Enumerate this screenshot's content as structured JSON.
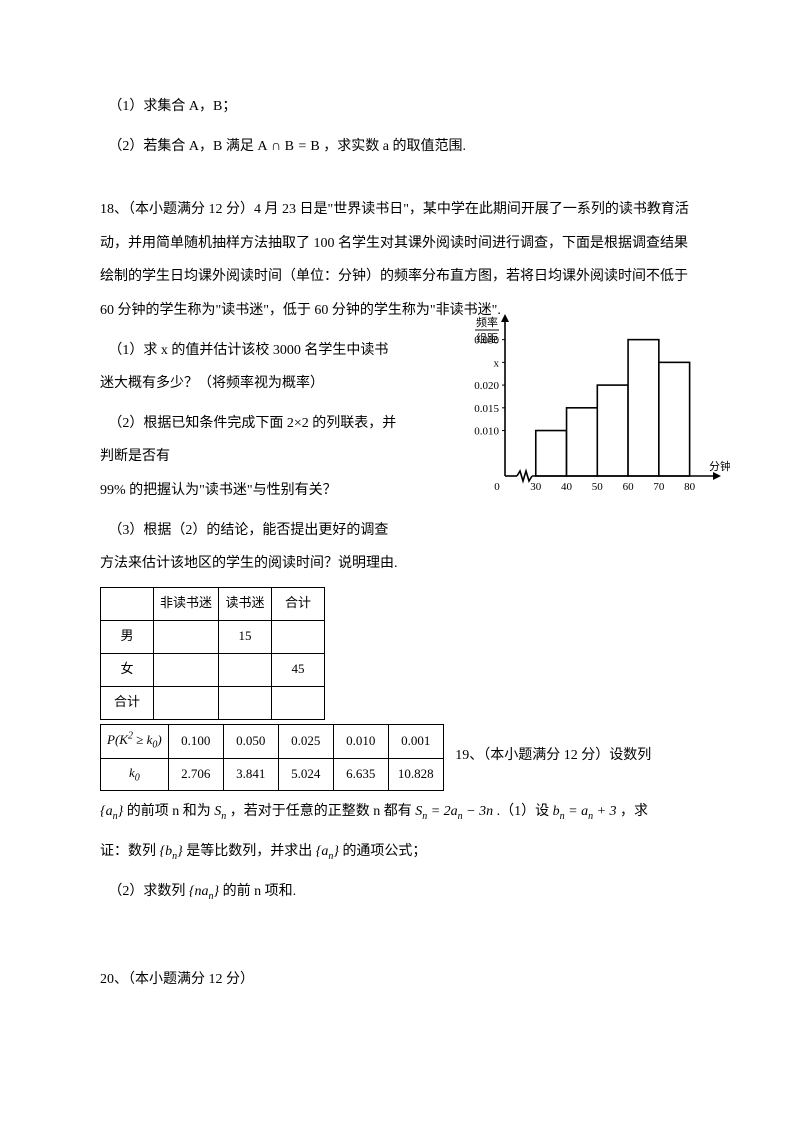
{
  "q17": {
    "p1": "（1）求集合 A，B；",
    "p2_a": "（2）若集合 A，B 满足 ",
    "p2_math": "A ∩ B = B",
    "p2_b": "，求实数 a 的取值范围."
  },
  "q18": {
    "lead_a": "18、（本小题满分 12 分）4 月 23 日是\"世界读书日\"，某中学在此期间开展了一系列的读书教育活动，并用简单随机抽样方法抽取了 100 名学生对其课外阅读时间进行调查，下面是根据调查结果绘制的学生日均课外阅读时间（单位：分钟）的频率分布直方图，若将日均课外阅读时间不低于 60 分钟的学生称为\"读书迷\"，低于 60 分钟的学生称为\"非读书迷\".",
    "p1": "（1）求 x 的值并估计该校 3000 名学生中读书迷大概有多少？（将频率视为概率）",
    "p2": "（2）根据已知条件完成下面 2×2 的列联表，并判断是否有",
    "p2b": "99% 的把握认为\"读书迷\"与性别有关？",
    "p3": "（3）根据（2）的结论，能否提出更好的调查方法来估计该地区的学生的阅读时间？说明理由.",
    "table1": {
      "headers": [
        "",
        "非读书迷",
        "读书迷",
        "合计"
      ],
      "rows": [
        [
          "男",
          "",
          "15",
          ""
        ],
        [
          "女",
          "",
          "",
          "45"
        ],
        [
          "合计",
          "",
          "",
          ""
        ]
      ]
    },
    "table2": {
      "row1": [
        "P(K² ≥ k₀)",
        "0.100",
        "0.050",
        "0.025",
        "0.010",
        "0.001"
      ],
      "row2": [
        "k₀",
        "2.706",
        "3.841",
        "5.024",
        "6.635",
        "10.828"
      ]
    },
    "histogram": {
      "ylabel_top": "频率",
      "ylabel_bot": "组距",
      "yticks": [
        "0.030",
        "x",
        "0.020",
        "0.015",
        "0.010"
      ],
      "ytick_pos": [
        0.03,
        0.025,
        0.02,
        0.015,
        0.01
      ],
      "xticks": [
        "30",
        "40",
        "50",
        "60",
        "70",
        "80"
      ],
      "xlabel": "分钟",
      "bars": [
        {
          "x0": 30,
          "x1": 40,
          "h": 0.01,
          "color": "#ffffff"
        },
        {
          "x0": 40,
          "x1": 50,
          "h": 0.015,
          "color": "#ffffff"
        },
        {
          "x0": 50,
          "x1": 60,
          "h": 0.02,
          "color": "#ffffff"
        },
        {
          "x0": 60,
          "x1": 70,
          "h": 0.03,
          "color": "#ffffff"
        },
        {
          "x0": 70,
          "x1": 80,
          "h": 0.025,
          "color": "#ffffff"
        }
      ],
      "ylim": [
        0,
        0.033
      ],
      "xlim": [
        20,
        85
      ],
      "axis_color": "#000000",
      "stroke_width": 1.6,
      "origin_label": "0"
    }
  },
  "q19": {
    "lead": "19、（本小题满分 12 分）设数列",
    "body_a": "{aₙ} 的前项 n 和为 Sₙ ，若对于任意的正整数 n 都有 Sₙ = 2aₙ − 3n .（1）设 bₙ = aₙ + 3 ，求",
    "body_b": "证：数列 {bₙ} 是等比数列，并求出 {aₙ} 的通项公式；",
    "p2": "（2）求数列 {naₙ} 的前 n 项和."
  },
  "q20": {
    "lead": "20、（本小题满分 12 分）"
  }
}
